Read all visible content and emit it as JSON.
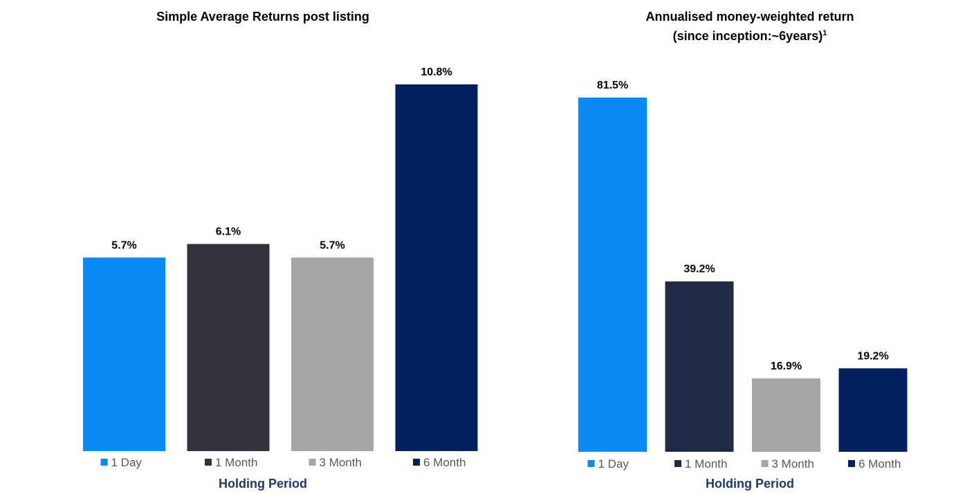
{
  "chart_data": [
    {
      "type": "bar",
      "title": "Simple Average Returns post listing",
      "xlabel": "Holding Period",
      "ylabel": "",
      "categories": [
        "1 Day",
        "1 Month",
        "3 Month",
        "6 Month"
      ],
      "values": [
        5.7,
        6.1,
        5.7,
        10.8
      ],
      "data_labels": [
        "5.7%",
        "6.1%",
        "5.7%",
        "10.8%"
      ],
      "colors": [
        "#0b89f4",
        "#32323a",
        "#a6a6a6",
        "#002060"
      ],
      "ylim": [
        0,
        10.8
      ],
      "grid": false,
      "legend_position": "bottom"
    },
    {
      "type": "bar",
      "title": "Annualised money-weighted return",
      "subtitle": "(since inception:~6years)",
      "subtitle_superscript": "1",
      "xlabel": "Holding Period",
      "ylabel": "",
      "categories": [
        "1 Day",
        "1 Month",
        "3 Month",
        "6 Month"
      ],
      "values": [
        81.5,
        39.2,
        16.9,
        19.2
      ],
      "data_labels": [
        "81.5%",
        "39.2%",
        "16.9%",
        "19.2%"
      ],
      "colors": [
        "#0b89f4",
        "#222a45",
        "#a6a6a6",
        "#002060"
      ],
      "ylim": [
        0,
        81.5
      ],
      "grid": false,
      "legend_position": "bottom"
    }
  ]
}
